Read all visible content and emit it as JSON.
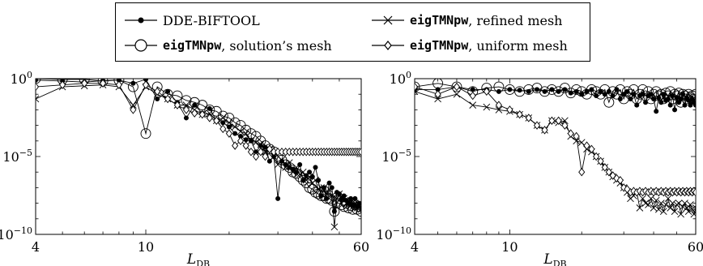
{
  "legend": {
    "entries": [
      {
        "name": "",
        "rest": "DDE-BIFTOOL",
        "marker": "filled-circle-icon"
      },
      {
        "name": "eigTMNpw",
        "rest": ", refined mesh",
        "marker": "cross-icon"
      },
      {
        "name": "eigTMNpw",
        "rest": ", solution’s mesh",
        "marker": "open-circle-icon"
      },
      {
        "name": "eigTMNpw",
        "rest": ", uniform mesh",
        "marker": "diamond-icon"
      }
    ]
  },
  "chart_data": [
    {
      "type": "line",
      "xlabel": "L",
      "xlabel_sub": "DB",
      "xscale": "log",
      "yscale": "log",
      "xlim": [
        4,
        60
      ],
      "ylim": [
        1e-10,
        1
      ],
      "xticks": [
        4,
        10,
        60
      ],
      "yticks_exp": [
        0,
        -5,
        -10
      ],
      "grid": false,
      "series": [
        {
          "name": "DDE-BIFTOOL",
          "marker": "filled-circle",
          "x": [
            4,
            5,
            6,
            7,
            8,
            9,
            10,
            11,
            12,
            13,
            14,
            15,
            16,
            17,
            18,
            19,
            20,
            21,
            22,
            23,
            24,
            25,
            26,
            27,
            28,
            29,
            30,
            31,
            32,
            33,
            34,
            35,
            36,
            37,
            38,
            39,
            40,
            41,
            42,
            43,
            44,
            45,
            46,
            47,
            48,
            49,
            50,
            51,
            52,
            53,
            54,
            55,
            56,
            57,
            58,
            59,
            60
          ],
          "y": [
            0.8,
            0.7,
            0.6,
            0.75,
            0.8,
            0.5,
            0.9,
            0.05,
            0.15,
            0.03,
            0.003,
            0.02,
            0.006,
            0.012,
            0.002,
            0.0015,
            0.0008,
            0.0003,
            0.0002,
            0.00012,
            0.0001,
            2e-05,
            5e-05,
            4e-05,
            5e-06,
            1e-05,
            2e-08,
            5e-06,
            3e-06,
            2e-06,
            1.5e-06,
            1e-06,
            3e-06,
            3e-07,
            6e-07,
            1e-06,
            5e-07,
            2e-06,
            3e-07,
            3e-08,
            1e-07,
            2e-08,
            2e-07,
            1e-07,
            3e-09,
            5e-08,
            4e-08,
            2e-08,
            3e-08,
            1.5e-08,
            1e-08,
            2e-08,
            8e-09,
            2e-08,
            6e-09,
            1e-08,
            5e-09
          ]
        },
        {
          "name": "eigTMNpw, refined mesh",
          "marker": "cross",
          "x": [
            4,
            5,
            6,
            7,
            8,
            9,
            10,
            11,
            12,
            13,
            14,
            15,
            16,
            17,
            18,
            19,
            20,
            21,
            22,
            23,
            24,
            25,
            26,
            27,
            28,
            29,
            30,
            31,
            32,
            33,
            34,
            35,
            36,
            37,
            38,
            39,
            40,
            41,
            42,
            43,
            44,
            45,
            46,
            47,
            48,
            49,
            50,
            51,
            52,
            53,
            54,
            55,
            56,
            57,
            58,
            59,
            60
          ],
          "y": [
            0.05,
            0.3,
            0.35,
            0.4,
            0.3,
            0.02,
            0.3,
            0.1,
            0.05,
            0.02,
            0.02,
            0.01,
            0.005,
            0.006,
            0.002,
            0.003,
            0.0015,
            0.0008,
            0.0004,
            0.0003,
            0.0001,
            8e-05,
            6e-05,
            2e-05,
            3e-05,
            1e-05,
            3e-06,
            6e-06,
            2e-06,
            4e-06,
            1e-06,
            2e-06,
            7e-07,
            1e-06,
            3e-07,
            5e-07,
            2e-07,
            3e-07,
            8e-08,
            1e-07,
            1e-07,
            4e-08,
            8e-08,
            3e-08,
            3e-10,
            2e-08,
            4e-08,
            1e-08,
            2e-08,
            1e-08,
            8e-09,
            1.5e-08,
            6e-09,
            1e-08,
            5e-09,
            8e-09,
            4e-09
          ]
        },
        {
          "name": "eigTMNpw, solution’s mesh",
          "marker": "open-circle",
          "x": [
            4,
            5,
            6,
            7,
            8,
            9,
            10,
            11,
            12,
            13,
            14,
            15,
            16,
            17,
            18,
            19,
            20,
            21,
            22,
            23,
            24,
            25,
            26,
            27,
            28,
            29,
            30,
            31,
            32,
            33,
            34,
            35,
            36,
            37,
            38,
            39,
            40,
            41,
            42,
            43,
            44,
            45,
            46,
            47,
            48,
            49,
            50,
            51,
            52,
            53,
            54,
            55,
            56,
            57,
            58,
            59,
            60
          ],
          "y": [
            1,
            0.9,
            0.9,
            0.7,
            0.8,
            0.3,
            0.0003,
            0.3,
            0.1,
            0.08,
            0.04,
            0.03,
            0.02,
            0.01,
            0.008,
            0.004,
            0.003,
            0.0015,
            0.001,
            0.0005,
            0.0003,
            0.0002,
            0.0001,
            5e-05,
            3e-05,
            2e-05,
            1e-05,
            6e-06,
            3e-06,
            2e-06,
            1e-06,
            8e-07,
            5e-07,
            3e-07,
            2e-07,
            1e-07,
            8e-08,
            5e-08,
            4e-08,
            3e-08,
            3e-08,
            2e-08,
            2e-08,
            1.5e-08,
            3e-09,
            1e-08,
            2e-08,
            8e-09,
            6e-09,
            1e-08,
            5e-09,
            7e-09,
            4e-09,
            8e-09,
            4e-09,
            6e-09,
            3e-09
          ]
        },
        {
          "name": "eigTMNpw, uniform mesh",
          "marker": "diamond",
          "x": [
            4,
            5,
            6,
            7,
            8,
            9,
            10,
            11,
            12,
            13,
            14,
            15,
            16,
            17,
            18,
            19,
            20,
            21,
            22,
            23,
            24,
            25,
            26,
            27,
            28,
            29,
            30,
            31,
            32,
            33,
            34,
            35,
            36,
            37,
            38,
            39,
            40,
            41,
            42,
            43,
            44,
            45,
            46,
            47,
            48,
            49,
            50,
            51,
            52,
            53,
            54,
            55,
            56,
            57,
            58,
            59,
            60
          ],
          "y": [
            0.3,
            0.4,
            0.5,
            0.5,
            0.4,
            0.01,
            0.4,
            0.15,
            0.05,
            0.02,
            0.01,
            0.006,
            0.005,
            0.003,
            0.002,
            0.0006,
            0.0003,
            5e-05,
            0.0001,
            5e-05,
            2e-05,
            1e-05,
            2e-05,
            1e-05,
            3e-05,
            2e-05,
            2e-05,
            2e-05,
            2e-05,
            2e-05,
            2e-05,
            2e-05,
            2e-05,
            2e-05,
            2e-05,
            2e-05,
            2e-05,
            2e-05,
            2e-05,
            2e-05,
            2e-05,
            2e-05,
            2e-05,
            2e-05,
            2e-05,
            2e-05,
            2e-05,
            2e-05,
            2e-05,
            2e-05,
            2e-05,
            2e-05,
            2e-05,
            2e-05,
            2e-05,
            2e-05,
            2e-05
          ]
        }
      ]
    },
    {
      "type": "line",
      "xlabel": "L",
      "xlabel_sub": "DB",
      "xscale": "log",
      "yscale": "log",
      "xlim": [
        4,
        60
      ],
      "ylim": [
        1e-10,
        1
      ],
      "xticks": [
        4,
        10,
        60
      ],
      "yticks_exp": [
        0,
        -5,
        -10
      ],
      "grid": false,
      "series": [
        {
          "name": "DDE-BIFTOOL",
          "marker": "filled-circle",
          "x": [
            4,
            5,
            6,
            7,
            8,
            9,
            10,
            11,
            12,
            13,
            14,
            15,
            16,
            17,
            18,
            19,
            20,
            21,
            22,
            23,
            24,
            25,
            26,
            27,
            28,
            29,
            30,
            31,
            32,
            33,
            34,
            35,
            36,
            37,
            38,
            39,
            40,
            41,
            42,
            43,
            44,
            45,
            46,
            47,
            48,
            49,
            50,
            51,
            52,
            53,
            54,
            55,
            56,
            57,
            58,
            59,
            60
          ],
          "y": [
            0.2,
            0.2,
            0.3,
            0.2,
            0.2,
            0.15,
            0.2,
            0.18,
            0.15,
            0.2,
            0.15,
            0.2,
            0.15,
            0.2,
            0.12,
            0.15,
            0.1,
            0.15,
            0.2,
            0.08,
            0.15,
            0.1,
            0.15,
            0.08,
            0.2,
            0.05,
            0.1,
            0.15,
            0.05,
            0.1,
            0.02,
            0.08,
            0.1,
            0.03,
            0.08,
            0.1,
            0.05,
            0.008,
            0.06,
            0.03,
            0.1,
            0.04,
            0.05,
            0.02,
            0.08,
            0.01,
            0.06,
            0.03,
            0.05,
            0.1,
            0.02,
            0.06,
            0.04,
            0.02,
            0.05,
            0.03,
            0.02
          ]
        },
        {
          "name": "eigTMNpw, refined mesh",
          "marker": "cross",
          "x": [
            4,
            5,
            6,
            7,
            8,
            9,
            10,
            11,
            12,
            13,
            14,
            15,
            16,
            17,
            18,
            19,
            20,
            21,
            22,
            23,
            24,
            25,
            26,
            27,
            28,
            29,
            30,
            31,
            32,
            33,
            34,
            35,
            36,
            37,
            38,
            39,
            40,
            41,
            42,
            43,
            44,
            45,
            46,
            47,
            48,
            49,
            50,
            51,
            52,
            53,
            54,
            55,
            56,
            57,
            58,
            59,
            60
          ],
          "y": [
            0.15,
            0.05,
            0.1,
            0.02,
            0.015,
            0.01,
            0.008,
            0.005,
            0.003,
            0.001,
            0.0005,
            0.002,
            0.0015,
            0.002,
            0.0002,
            0.0001,
            8e-05,
            3e-05,
            2e-05,
            1e-05,
            5e-06,
            2e-06,
            1e-06,
            5e-07,
            3e-07,
            2e-07,
            1e-07,
            5e-08,
            2e-08,
            3e-08,
            5e-08,
            5e-09,
            2e-08,
            1e-08,
            8e-09,
            2e-08,
            5e-09,
            1.5e-08,
            4e-09,
            1e-08,
            3e-09,
            8e-09,
            2e-08,
            5e-09,
            1e-08,
            3e-09,
            8e-09,
            1e-08,
            2e-09,
            6e-09,
            1e-08,
            5e-09,
            3e-09,
            8e-09,
            4e-09,
            2e-09,
            5e-09
          ]
        },
        {
          "name": "eigTMNpw, solution’s mesh",
          "marker": "open-circle",
          "x": [
            4,
            5,
            6,
            7,
            8,
            9,
            10,
            11,
            12,
            13,
            14,
            15,
            16,
            17,
            18,
            19,
            20,
            21,
            22,
            23,
            24,
            25,
            26,
            27,
            28,
            29,
            30,
            31,
            32,
            33,
            34,
            35,
            36,
            37,
            38,
            39,
            40,
            41,
            42,
            43,
            44,
            45,
            46,
            47,
            48,
            49,
            50,
            51,
            52,
            53,
            54,
            55,
            56,
            57,
            58,
            59,
            60
          ],
          "y": [
            0.3,
            0.5,
            0.3,
            0.15,
            0.25,
            0.3,
            0.2,
            0.15,
            0.2,
            0.25,
            0.15,
            0.2,
            0.15,
            0.25,
            0.12,
            0.2,
            0.15,
            0.1,
            0.2,
            0.15,
            0.1,
            0.2,
            0.03,
            0.15,
            0.1,
            0.2,
            0.05,
            0.15,
            0.1,
            0.2,
            0.05,
            0.1,
            0.2,
            0.08,
            0.15,
            0.05,
            0.1,
            0.15,
            0.08,
            0.1,
            0.05,
            0.12,
            0.08,
            0.15,
            0.05,
            0.1,
            0.08,
            0.12,
            0.03,
            0.1,
            0.08,
            0.05,
            0.1,
            0.06,
            0.08,
            0.05,
            0.1
          ]
        },
        {
          "name": "eigTMNpw, uniform mesh",
          "marker": "diamond",
          "x": [
            4,
            5,
            6,
            7,
            8,
            9,
            10,
            11,
            12,
            13,
            14,
            15,
            16,
            17,
            18,
            19,
            20,
            21,
            22,
            23,
            24,
            25,
            26,
            27,
            28,
            29,
            30,
            31,
            32,
            33,
            34,
            35,
            36,
            37,
            38,
            39,
            40,
            41,
            42,
            43,
            44,
            45,
            46,
            47,
            48,
            49,
            50,
            51,
            52,
            53,
            54,
            55,
            56,
            57,
            58,
            59,
            60
          ],
          "y": [
            0.3,
            0.1,
            0.3,
            0.08,
            0.15,
            0.02,
            0.01,
            0.005,
            0.003,
            0.001,
            0.0005,
            0.002,
            0.002,
            0.001,
            0.0003,
            0.0002,
            1e-06,
            5e-05,
            3e-05,
            1e-05,
            5e-06,
            2e-06,
            1e-06,
            6e-07,
            4e-07,
            3e-07,
            1e-07,
            8e-08,
            5e-08,
            6e-08,
            5e-08,
            6e-08,
            5e-08,
            6e-08,
            5e-08,
            6e-08,
            5e-08,
            6e-08,
            5e-08,
            6e-08,
            5e-08,
            6e-08,
            5e-08,
            6e-08,
            5e-08,
            6e-08,
            5e-08,
            6e-08,
            5e-08,
            6e-08,
            5e-08,
            6e-08,
            5e-08,
            6e-08,
            5e-08,
            6e-08,
            5e-08
          ]
        }
      ]
    }
  ]
}
